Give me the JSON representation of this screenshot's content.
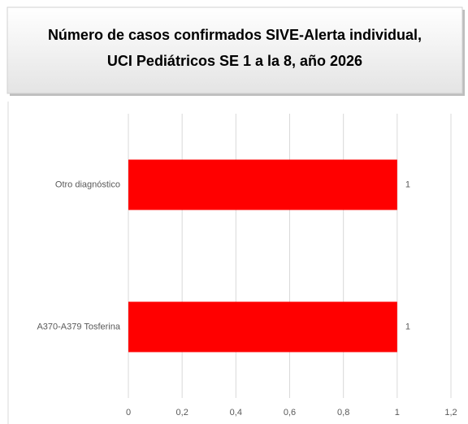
{
  "chart_data": {
    "type": "hbar",
    "title": [
      "Número de casos confirmados SIVE-Alerta individual,",
      "UCI Pediátricos SE 1 a la 8, año 2026"
    ],
    "categories": [
      "Otro diagnóstico",
      "A370-A379 Tosferina"
    ],
    "values": [
      1,
      1
    ],
    "color": "#ff0000",
    "xlim": [
      0,
      1.2
    ],
    "xticks": [
      0,
      {
        "value": 0.2,
        "label": "0,2"
      },
      {
        "value": 0.4,
        "label": "0,4"
      },
      {
        "value": 0.6,
        "label": "0,6"
      },
      {
        "value": 0.8,
        "label": "0,8"
      },
      1,
      {
        "value": 1.2,
        "label": "1,2"
      }
    ],
    "grid": true
  }
}
